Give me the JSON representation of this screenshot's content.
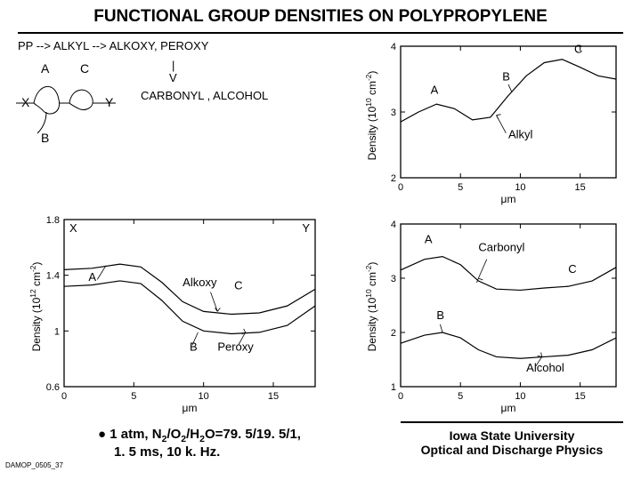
{
  "title": "FUNCTIONAL GROUP DENSITIES ON POLYPROPYLENE",
  "slide_id": "DAMOP_0505_37",
  "bullet_line1_pre": "1 atm,  N",
  "bullet_line1_mid1": "/O",
  "bullet_line1_mid2": "/H",
  "bullet_line1_post": "O=79. 5/19. 5/1,",
  "bullet_line2": "1. 5 ms, 10 k. Hz.",
  "affil_line1": "Iowa State University",
  "affil_line2": "Optical and Discharge Physics",
  "scheme": {
    "reaction": "PP --> ALKYL --> ALKOXY, PEROXY",
    "products": "CARBONYL , ALCOHOL",
    "labels": {
      "A": "A",
      "B": "B",
      "C": "C",
      "X": "X",
      "Y": "Y"
    }
  },
  "chart_left": {
    "ylabel_pre": "Density (10",
    "ylabel_sup": "12",
    "ylabel_post": " cm",
    "ylabel_sup2": "-2",
    "ylabel_end": ")",
    "xlabel": "μm",
    "ylim": [
      0.6,
      1.8
    ],
    "yticks": [
      0.6,
      1.0,
      1.4,
      1.8
    ],
    "xlim": [
      0,
      18
    ],
    "xticks": [
      0,
      5,
      10,
      15
    ],
    "corner_X": "X",
    "corner_Y": "Y",
    "label_A": "A",
    "label_B": "B",
    "label_C": "C",
    "label_alkoxy": "Alkoxy",
    "label_peroxy": "Peroxy",
    "curveA": [
      [
        0,
        1.44
      ],
      [
        2,
        1.45
      ],
      [
        4,
        1.48
      ],
      [
        5.5,
        1.46
      ],
      [
        7,
        1.35
      ],
      [
        8.5,
        1.21
      ],
      [
        10,
        1.14
      ],
      [
        12,
        1.12
      ],
      [
        14,
        1.13
      ],
      [
        16,
        1.18
      ],
      [
        18,
        1.3
      ]
    ],
    "curveB": [
      [
        0,
        1.32
      ],
      [
        2,
        1.33
      ],
      [
        4,
        1.36
      ],
      [
        5.5,
        1.34
      ],
      [
        7,
        1.22
      ],
      [
        8.5,
        1.07
      ],
      [
        10,
        1.0
      ],
      [
        12,
        0.98
      ],
      [
        14,
        0.99
      ],
      [
        16,
        1.04
      ],
      [
        18,
        1.18
      ]
    ],
    "line_color": "#000000",
    "line_width": 1.2,
    "background": "#ffffff",
    "axis_color": "#000000",
    "tick_fontsize": 11,
    "label_fontsize": 12
  },
  "chart_top_right": {
    "ylabel_pre": "Density (10",
    "ylabel_sup": "10",
    "ylabel_post": " cm",
    "ylabel_sup2": "-2",
    "ylabel_end": ")",
    "xlabel": "μm",
    "ylim": [
      2,
      4
    ],
    "yticks": [
      2,
      3,
      4
    ],
    "xlim": [
      0,
      18
    ],
    "xticks": [
      0,
      5,
      10,
      15
    ],
    "label_A": "A",
    "label_B": "B",
    "label_C": "C",
    "label_alkyl": "Alkyl",
    "curve": [
      [
        0,
        2.85
      ],
      [
        1.5,
        3.0
      ],
      [
        3,
        3.12
      ],
      [
        4.5,
        3.05
      ],
      [
        6,
        2.88
      ],
      [
        7.5,
        2.92
      ],
      [
        9,
        3.25
      ],
      [
        10.5,
        3.55
      ],
      [
        12,
        3.75
      ],
      [
        13.5,
        3.8
      ],
      [
        15,
        3.68
      ],
      [
        16.5,
        3.55
      ],
      [
        18,
        3.5
      ]
    ],
    "line_color": "#000000",
    "line_width": 1.2,
    "background": "#ffffff",
    "axis_color": "#000000",
    "tick_fontsize": 11,
    "label_fontsize": 12
  },
  "chart_bot_right": {
    "ylabel_pre": "Density (10",
    "ylabel_sup": "10",
    "ylabel_post": " cm",
    "ylabel_sup2": "-2",
    "ylabel_end": ")",
    "xlabel": "μm",
    "ylim": [
      1,
      4
    ],
    "yticks": [
      1,
      2,
      3,
      4
    ],
    "xlim": [
      0,
      18
    ],
    "xticks": [
      0,
      5,
      10,
      15
    ],
    "label_A": "A",
    "label_B": "B",
    "label_C": "C",
    "label_carbonyl": "Carbonyl",
    "label_alcohol": "Alcohol",
    "curveTop": [
      [
        0,
        3.15
      ],
      [
        2,
        3.35
      ],
      [
        3.5,
        3.4
      ],
      [
        5,
        3.25
      ],
      [
        6.5,
        2.95
      ],
      [
        8,
        2.8
      ],
      [
        10,
        2.78
      ],
      [
        12,
        2.82
      ],
      [
        14,
        2.85
      ],
      [
        16,
        2.95
      ],
      [
        18,
        3.2
      ]
    ],
    "curveBot": [
      [
        0,
        1.8
      ],
      [
        2,
        1.95
      ],
      [
        3.5,
        2.0
      ],
      [
        5,
        1.9
      ],
      [
        6.5,
        1.68
      ],
      [
        8,
        1.55
      ],
      [
        10,
        1.52
      ],
      [
        12,
        1.55
      ],
      [
        14,
        1.58
      ],
      [
        16,
        1.68
      ],
      [
        18,
        1.9
      ]
    ],
    "line_color": "#000000",
    "line_width": 1.2,
    "background": "#ffffff",
    "axis_color": "#000000",
    "tick_fontsize": 11,
    "label_fontsize": 12
  }
}
